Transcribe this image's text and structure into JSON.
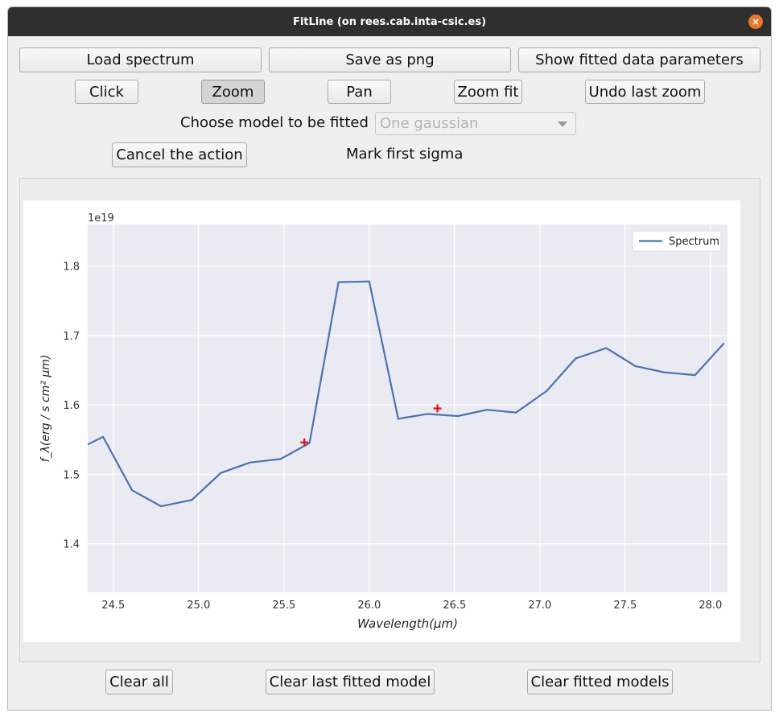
{
  "window": {
    "title": "FitLine (on rees.cab.inta-csic.es)",
    "close_icon": "close-icon",
    "close_glyph": "×"
  },
  "toolbar_row1": {
    "load_label": "Load spectrum",
    "save_label": "Save as png",
    "show_params_label": "Show fitted data parameters"
  },
  "toolbar_row2": {
    "click_label": "Click",
    "zoom_label": "Zoom",
    "pan_label": "Pan",
    "zoom_fit_label": "Zoom fit",
    "undo_zoom_label": "Undo last zoom"
  },
  "model": {
    "label": "Choose model to be fitted",
    "selected": "One gaussian"
  },
  "action": {
    "cancel_label": "Cancel the action",
    "status": "Mark first sigma"
  },
  "bottom": {
    "clear_all_label": "Clear all",
    "clear_last_label": "Clear last fitted model",
    "clear_models_label": "Clear fitted models"
  },
  "colors": {
    "line": "#4c72b0",
    "marker": "#e01010",
    "plot_bg": "#eaeaf2"
  },
  "chart_data": {
    "type": "line",
    "multiplier": "1e19",
    "xlabel_main": "Wavelength(",
    "xlabel_mu": "μ",
    "xlabel_end": "m)",
    "ylabel": "f_λ(erg / s cm² μm)",
    "xlim": [
      24.35,
      28.1
    ],
    "ylim": [
      1.33,
      1.86
    ],
    "xticks": [
      24.5,
      25.0,
      25.5,
      26.0,
      26.5,
      27.0,
      27.5,
      28.0
    ],
    "xtick_labels": [
      "24.5",
      "25.0",
      "25.5",
      "26.0",
      "26.5",
      "27.0",
      "27.5",
      "28.0"
    ],
    "yticks": [
      1.4,
      1.5,
      1.6,
      1.7,
      1.8
    ],
    "ytick_labels": [
      "1.4",
      "1.5",
      "1.6",
      "1.7",
      "1.8"
    ],
    "grid": true,
    "legend_position": "top-right",
    "series": [
      {
        "name": "Spectrum",
        "x": [
          24.35,
          24.44,
          24.61,
          24.78,
          24.96,
          25.13,
          25.3,
          25.48,
          25.65,
          25.82,
          26.0,
          26.17,
          26.34,
          26.52,
          26.69,
          26.86,
          27.04,
          27.21,
          27.39,
          27.56,
          27.73,
          27.91,
          28.08
        ],
        "y": [
          1.543,
          1.554,
          1.477,
          1.454,
          1.463,
          1.502,
          1.517,
          1.522,
          1.545,
          1.777,
          1.778,
          1.58,
          1.587,
          1.584,
          1.593,
          1.589,
          1.62,
          1.667,
          1.682,
          1.656,
          1.647,
          1.643,
          1.689
        ]
      }
    ],
    "markers": [
      {
        "x": 25.62,
        "y": 1.546
      },
      {
        "x": 26.4,
        "y": 1.595
      }
    ]
  }
}
